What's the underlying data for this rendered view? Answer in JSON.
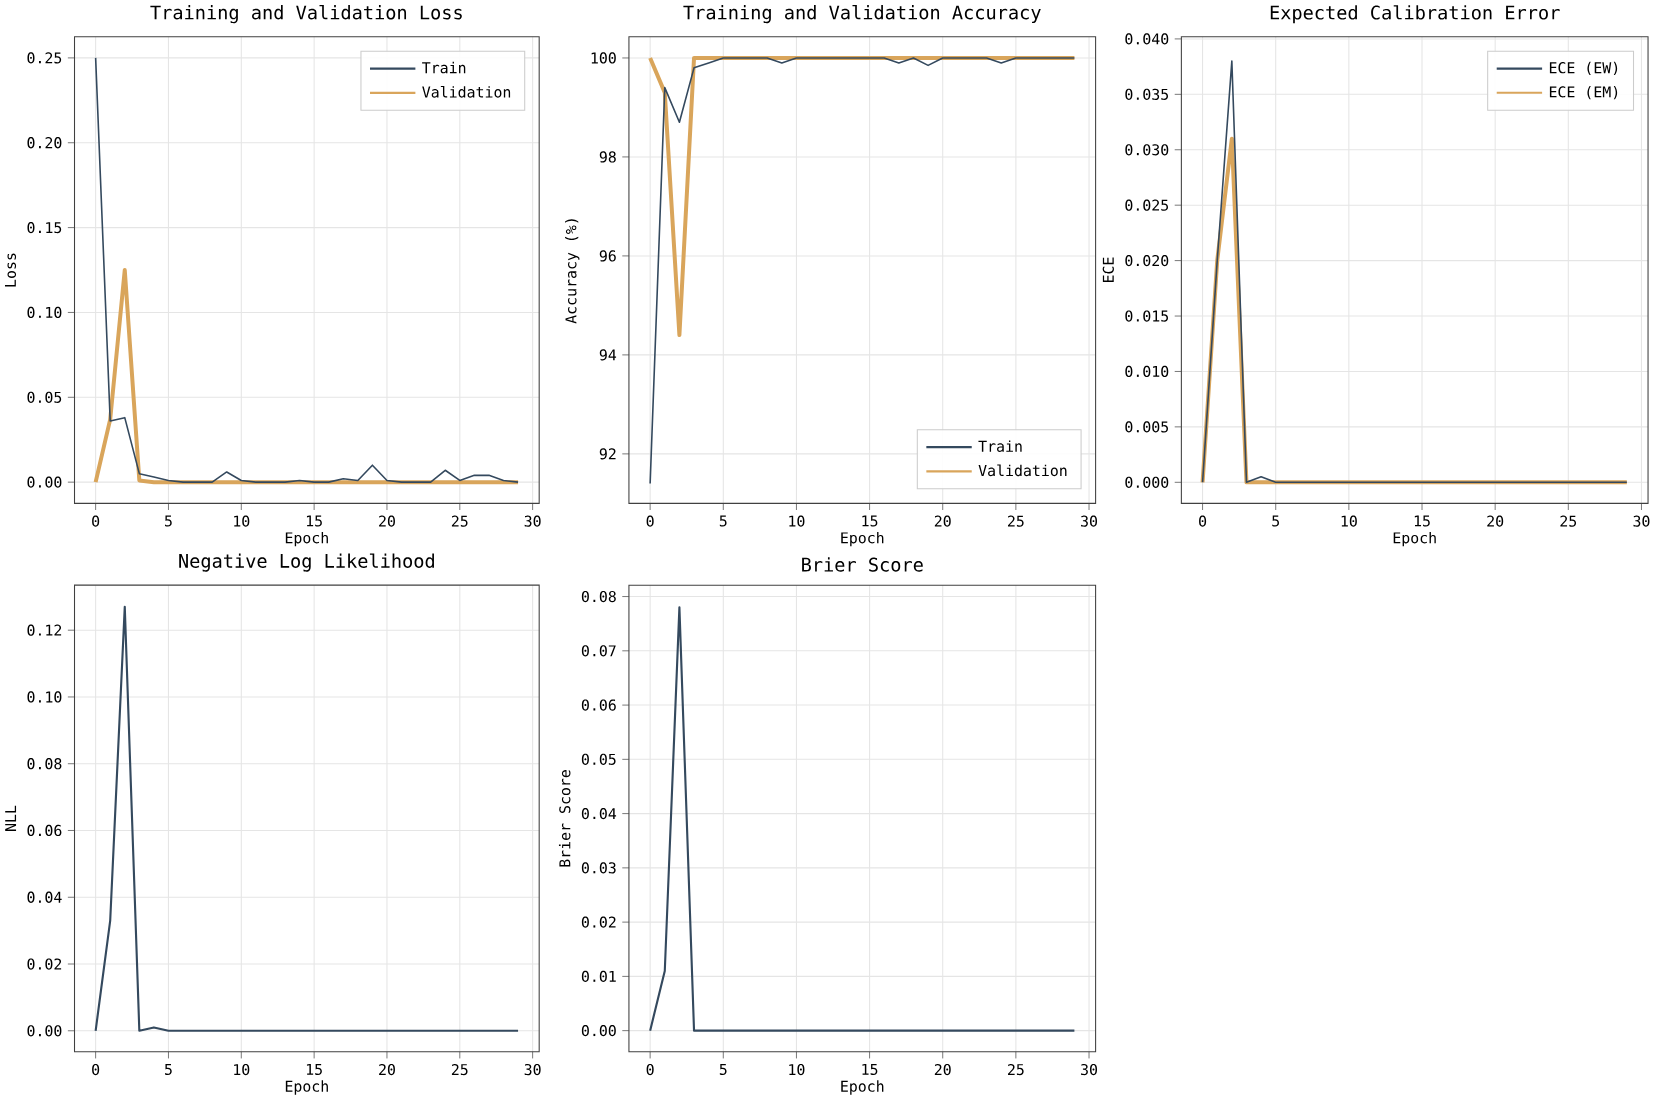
{
  "chart_data": [
    {
      "type": "line",
      "title": "Training and Validation Loss",
      "xlabel": "Epoch",
      "ylabel": "Loss",
      "x": [
        0,
        1,
        2,
        3,
        4,
        5,
        6,
        7,
        8,
        9,
        10,
        11,
        12,
        13,
        14,
        15,
        16,
        17,
        18,
        19,
        20,
        21,
        22,
        23,
        24,
        25,
        26,
        27,
        28,
        29
      ],
      "series": [
        {
          "name": "Train",
          "color": "#34495e",
          "values": [
            0.25,
            0.036,
            0.038,
            0.005,
            0.003,
            0.001,
            0,
            0,
            0,
            0.006,
            0.001,
            0,
            0,
            0,
            0.001,
            0,
            0,
            0.002,
            0.001,
            0.01,
            0.001,
            0,
            0,
            0,
            0.007,
            0.001,
            0.004,
            0.004,
            0.001,
            0
          ]
        },
        {
          "name": "Validation",
          "color": "#d9a55b",
          "values": [
            0,
            0.037,
            0.125,
            0.001,
            0,
            0,
            0,
            0,
            0,
            0,
            0,
            0,
            0,
            0,
            0,
            0,
            0,
            0,
            0,
            0,
            0,
            0,
            0,
            0,
            0,
            0,
            0,
            0,
            0,
            0
          ]
        }
      ],
      "xlim": [
        -1.45,
        30.45
      ],
      "ylim": [
        -0.0125,
        0.2625
      ],
      "xticks": [
        0,
        5,
        10,
        15,
        20,
        25,
        30
      ],
      "yticks": [
        {
          "value": 0,
          "label": "0.00"
        },
        0.05,
        {
          "value": 0.1,
          "label": "0.10"
        },
        0.15,
        {
          "value": 0.2,
          "label": "0.20"
        },
        0.25
      ],
      "grid": true,
      "legend": "top right",
      "marker": "none",
      "line_style": "solid"
    },
    {
      "type": "line",
      "title": "Training and Validation Accuracy",
      "xlabel": "Epoch",
      "ylabel": "Accuracy (%)",
      "x": [
        0,
        1,
        2,
        3,
        4,
        5,
        6,
        7,
        8,
        9,
        10,
        11,
        12,
        13,
        14,
        15,
        16,
        17,
        18,
        19,
        20,
        21,
        22,
        23,
        24,
        25,
        26,
        27,
        28,
        29
      ],
      "series": [
        {
          "name": "Train",
          "color": "#34495e",
          "values": [
            91.4,
            99.4,
            98.7,
            99.8,
            99.9,
            100,
            100,
            100,
            100,
            99.9,
            100,
            100,
            100,
            100,
            100,
            100,
            100,
            99.9,
            100,
            99.85,
            100,
            100,
            100,
            100,
            99.9,
            100,
            100,
            100,
            100,
            100
          ]
        },
        {
          "name": "Validation",
          "color": "#d9a55b",
          "values": [
            100,
            99.3,
            94.4,
            100,
            100,
            100,
            100,
            100,
            100,
            100,
            100,
            100,
            100,
            100,
            100,
            100,
            100,
            100,
            100,
            100,
            100,
            100,
            100,
            100,
            100,
            100,
            100,
            100,
            100,
            100
          ]
        }
      ],
      "xlim": [
        -1.45,
        30.45
      ],
      "ylim": [
        91.0,
        100.43
      ],
      "xticks": [
        0,
        5,
        10,
        15,
        20,
        25,
        30
      ],
      "yticks": [
        92,
        94,
        96,
        98,
        100
      ],
      "grid": true,
      "legend": "bottom right",
      "marker": "none",
      "line_style": "solid"
    },
    {
      "type": "line",
      "title": "Expected Calibration Error",
      "xlabel": "Epoch",
      "ylabel": "ECE",
      "x": [
        0,
        1,
        2,
        3,
        4,
        5,
        6,
        7,
        8,
        9,
        10,
        11,
        12,
        13,
        14,
        15,
        16,
        17,
        18,
        19,
        20,
        21,
        22,
        23,
        24,
        25,
        26,
        27,
        28,
        29
      ],
      "series": [
        {
          "name": "ECE (EW)",
          "color": "#34495e",
          "values": [
            0,
            0.02,
            0.038,
            0,
            0.0005,
            0,
            0,
            0,
            0,
            0,
            0,
            0,
            0,
            0,
            0,
            0,
            0,
            0,
            0,
            0,
            0,
            0,
            0,
            0,
            0,
            0,
            0,
            0,
            0,
            0
          ]
        },
        {
          "name": "ECE (EM)",
          "color": "#d9a55b",
          "values": [
            0,
            0.02,
            0.031,
            0,
            0,
            0,
            0,
            0,
            0,
            0,
            0,
            0,
            0,
            0,
            0,
            0,
            0,
            0,
            0,
            0,
            0,
            0,
            0,
            0,
            0,
            0,
            0,
            0,
            0,
            0
          ]
        }
      ],
      "xlim": [
        -1.45,
        30.45
      ],
      "ylim": [
        -0.0019,
        0.0402
      ],
      "xticks": [
        0,
        5,
        10,
        15,
        20,
        25,
        30
      ],
      "yticks": [
        {
          "value": 0,
          "label": "0.000"
        },
        0.005,
        {
          "value": 0.01,
          "label": "0.010"
        },
        0.015,
        {
          "value": 0.02,
          "label": "0.020"
        },
        0.025,
        {
          "value": 0.03,
          "label": "0.030"
        },
        0.035,
        {
          "value": 0.04,
          "label": "0.040"
        }
      ],
      "grid": true,
      "legend": "top right",
      "marker": "none",
      "line_style": "solid"
    },
    {
      "type": "line",
      "title": "Negative Log Likelihood",
      "xlabel": "Epoch",
      "ylabel": "NLL",
      "x": [
        0,
        1,
        2,
        3,
        4,
        5,
        6,
        7,
        8,
        9,
        10,
        11,
        12,
        13,
        14,
        15,
        16,
        17,
        18,
        19,
        20,
        21,
        22,
        23,
        24,
        25,
        26,
        27,
        28,
        29
      ],
      "series": [
        {
          "color": "#34495e",
          "values": [
            0,
            0.033,
            0.127,
            0,
            0.001,
            0,
            0,
            0,
            0,
            0,
            0,
            0,
            0,
            0,
            0,
            0,
            0,
            0,
            0,
            0,
            0,
            0,
            0,
            0,
            0,
            0,
            0,
            0,
            0,
            0
          ]
        }
      ],
      "xlim": [
        -1.45,
        30.45
      ],
      "ylim": [
        -0.0063,
        0.1335
      ],
      "xticks": [
        0,
        5,
        10,
        15,
        20,
        25,
        30
      ],
      "yticks": [
        {
          "value": 0,
          "label": "0.00"
        },
        0.02,
        0.04,
        0.06,
        0.08,
        {
          "value": 0.1,
          "label": "0.10"
        },
        0.12
      ],
      "grid": true,
      "marker": "none",
      "line_style": "solid"
    },
    {
      "type": "line",
      "title": "Brier Score",
      "xlabel": "Epoch",
      "ylabel": "Brier Score",
      "x": [
        0,
        1,
        2,
        3,
        4,
        5,
        6,
        7,
        8,
        9,
        10,
        11,
        12,
        13,
        14,
        15,
        16,
        17,
        18,
        19,
        20,
        21,
        22,
        23,
        24,
        25,
        26,
        27,
        28,
        29
      ],
      "series": [
        {
          "color": "#34495e",
          "values": [
            0,
            0.011,
            0.078,
            0,
            0,
            0,
            0,
            0,
            0,
            0,
            0,
            0,
            0,
            0,
            0,
            0,
            0,
            0,
            0,
            0,
            0,
            0,
            0,
            0,
            0,
            0,
            0,
            0,
            0,
            0
          ]
        }
      ],
      "xlim": [
        -1.45,
        30.45
      ],
      "ylim": [
        -0.0039,
        0.0821
      ],
      "xticks": [
        0,
        5,
        10,
        15,
        20,
        25,
        30
      ],
      "yticks": [
        {
          "value": 0,
          "label": "0.00"
        },
        0.01,
        0.02,
        0.03,
        0.04,
        0.05,
        0.06,
        0.07,
        0.08
      ],
      "grid": true,
      "marker": "none",
      "line_style": "solid"
    }
  ]
}
